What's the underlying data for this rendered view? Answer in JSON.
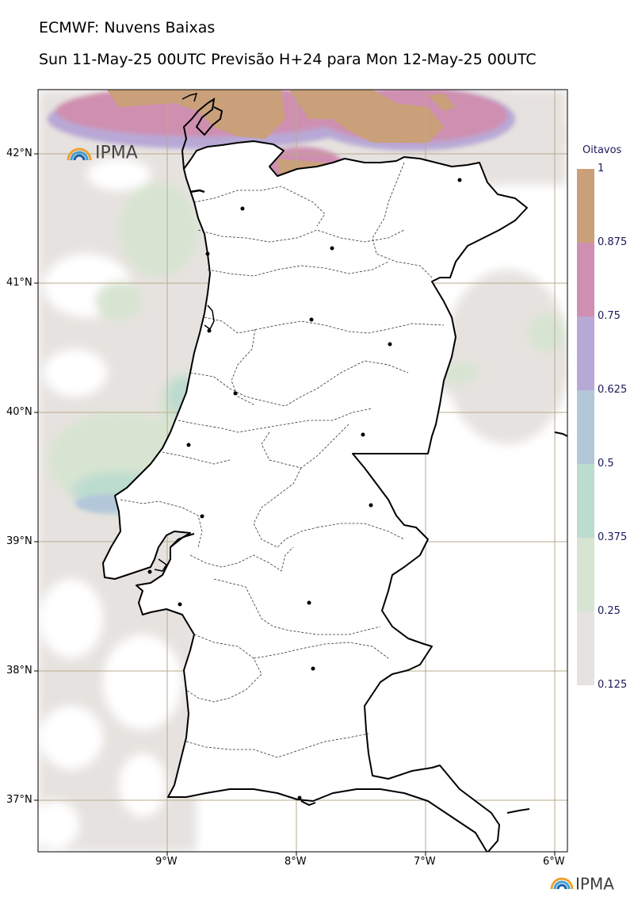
{
  "header": {
    "title": "ECMWF: Nuvens Baixas",
    "subtitle": "Sun 11-May-25 00UTC Previsão H+24 para Mon 12-May-25 00UTC"
  },
  "axes": {
    "lat_labels": [
      "42°N",
      "41°N",
      "40°N",
      "39°N",
      "38°N",
      "37°N"
    ],
    "lon_labels": [
      "9°W",
      "8°W",
      "7°W",
      "6°W"
    ]
  },
  "colorbar": {
    "title": "Oitavos",
    "labels": [
      "1",
      "0.875",
      "0.75",
      "0.625",
      "0.5",
      "0.375",
      "0.25",
      "0.125"
    ],
    "colors": [
      "#c9a07a",
      "#cf8fb0",
      "#b8a8d6",
      "#b3c7d9",
      "#bcdccf",
      "#d8e4d2",
      "#e6e2df"
    ]
  },
  "logos": {
    "map_logo": "IPMA",
    "footer_logo": "IPMA"
  },
  "icons": [
    "ipma-logo-icon"
  ],
  "colors": {
    "grid": "#b9ab8e",
    "coast": "#000000",
    "low_cloud_light": "#e6e2df",
    "low_cloud_max": "#c9a07a"
  }
}
